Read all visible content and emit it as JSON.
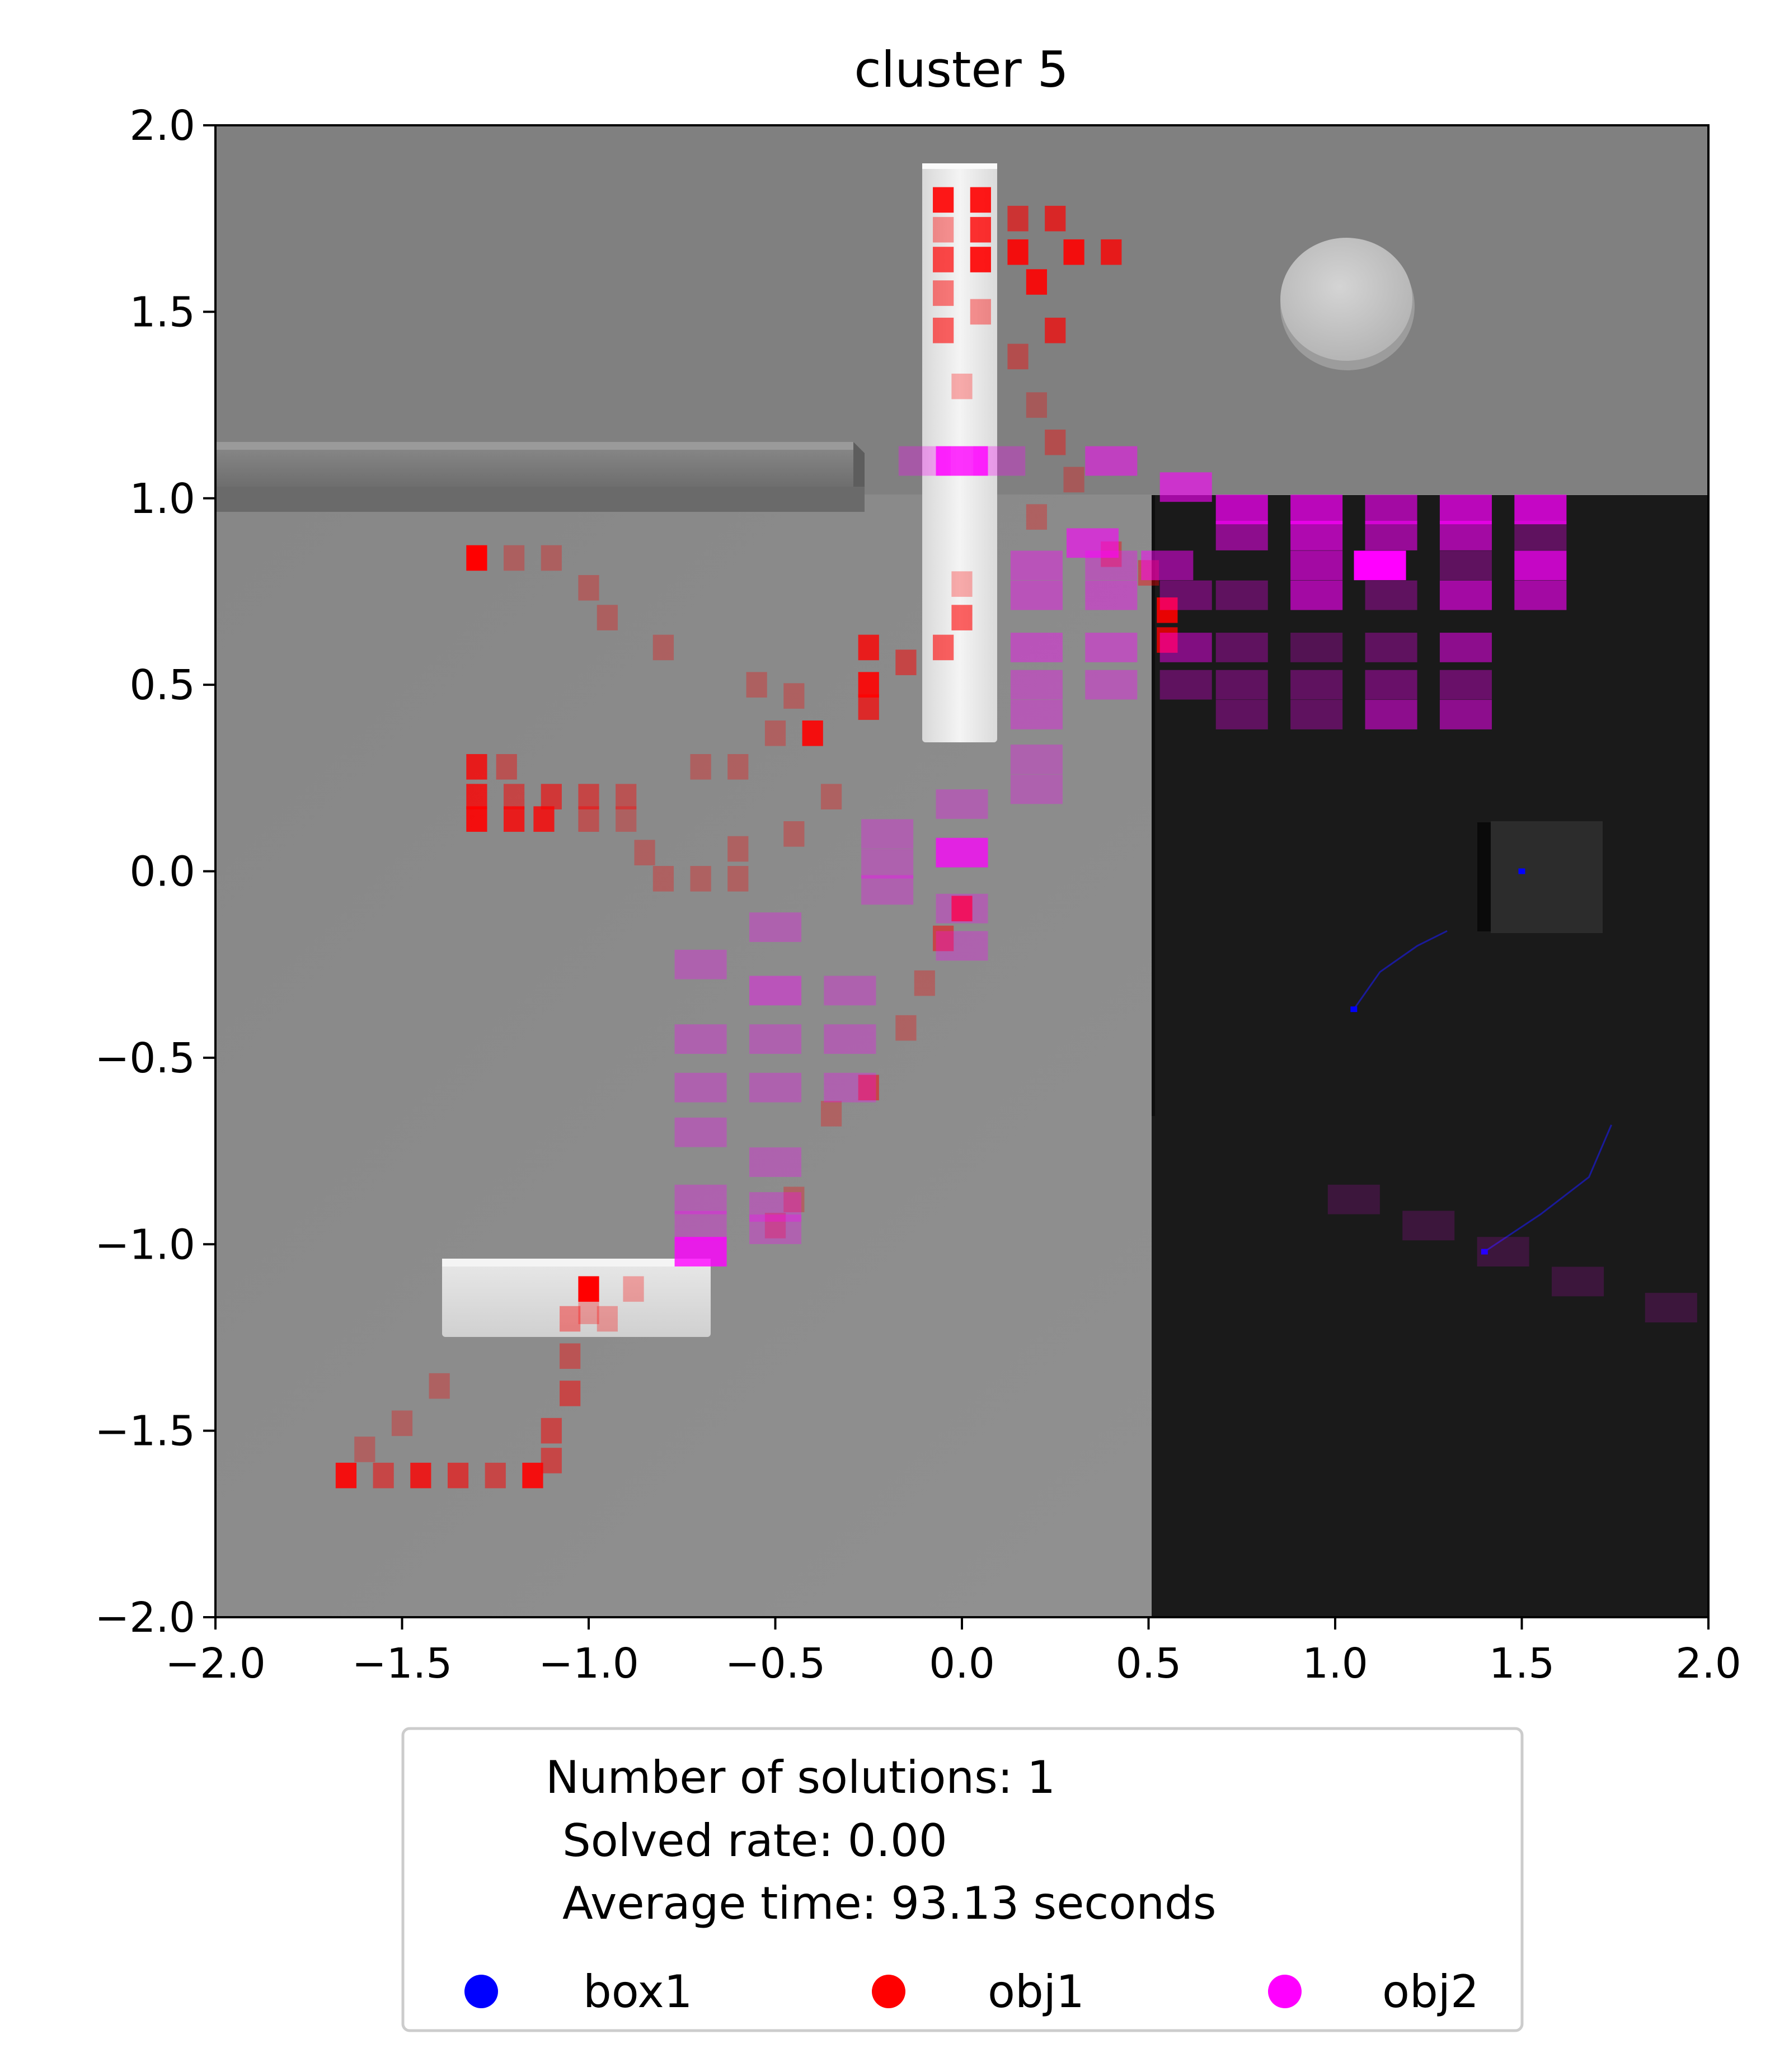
{
  "chart_data": {
    "type": "heatmap",
    "title": "cluster 5",
    "xlabel": "",
    "ylabel": "",
    "xlim": [
      -2.0,
      2.0
    ],
    "ylim": [
      -2.0,
      2.0
    ],
    "x_ticks": [
      "−2.0",
      "−1.5",
      "−1.0",
      "−0.5",
      "0.0",
      "0.5",
      "1.0",
      "1.5",
      "2.0"
    ],
    "y_ticks": [
      "2.0",
      "1.5",
      "1.0",
      "0.5",
      "0.0",
      "−0.5",
      "−1.0",
      "−1.5",
      "−2.0"
    ],
    "grid": false,
    "legend_position": "below",
    "legend_text": {
      "solutions": "Number of solutions: 1",
      "solved_rate": "Solved rate: 0.00",
      "average_time": "Average time: 93.13 seconds"
    },
    "series": [
      {
        "name": "box1",
        "color": "#0000ff",
        "cells": [
          [
            1.5,
            0.0
          ],
          [
            1.05,
            -0.37
          ],
          [
            1.4,
            -1.02
          ]
        ],
        "trails": [
          [
            [
              1.05,
              -0.37
            ],
            [
              1.12,
              -0.27
            ],
            [
              1.22,
              -0.2
            ],
            [
              1.3,
              -0.16
            ]
          ],
          [
            [
              1.4,
              -1.02
            ],
            [
              1.55,
              -0.92
            ],
            [
              1.68,
              -0.82
            ],
            [
              1.74,
              -0.68
            ]
          ]
        ]
      },
      {
        "name": "obj1",
        "color": "#ff0000",
        "cells": [
          [
            -0.05,
            1.8,
            0.9
          ],
          [
            0.05,
            1.8,
            0.9
          ],
          [
            -0.05,
            1.72,
            0.4
          ],
          [
            0.05,
            1.72,
            0.8
          ],
          [
            -0.05,
            1.64,
            0.7
          ],
          [
            0.05,
            1.64,
            0.9
          ],
          [
            0.15,
            1.75,
            0.6
          ],
          [
            0.25,
            1.75,
            0.7
          ],
          [
            0.15,
            1.66,
            0.9
          ],
          [
            0.3,
            1.66,
            0.9
          ],
          [
            0.4,
            1.66,
            0.8
          ],
          [
            0.2,
            1.58,
            0.9
          ],
          [
            -0.05,
            1.55,
            0.5
          ],
          [
            0.05,
            1.5,
            0.4
          ],
          [
            0.25,
            1.45,
            0.7
          ],
          [
            -0.05,
            1.45,
            0.6
          ],
          [
            0.15,
            1.38,
            0.4
          ],
          [
            0.0,
            1.3,
            0.3
          ],
          [
            0.2,
            1.25,
            0.3
          ],
          [
            0.25,
            1.15,
            0.4
          ],
          [
            0.3,
            1.05,
            0.3
          ],
          [
            0.2,
            0.95,
            0.3
          ],
          [
            0.4,
            0.85,
            0.4
          ],
          [
            0.5,
            0.8,
            0.4
          ],
          [
            0.55,
            0.7,
            0.9
          ],
          [
            0.55,
            0.62,
            0.8
          ],
          [
            0.0,
            0.77,
            0.3
          ],
          [
            0.0,
            0.68,
            0.6
          ],
          [
            -0.05,
            0.6,
            0.6
          ],
          [
            -0.25,
            0.6,
            0.8
          ],
          [
            -0.15,
            0.56,
            0.5
          ],
          [
            -0.25,
            0.5,
            0.9
          ],
          [
            -0.25,
            0.44,
            0.7
          ],
          [
            -0.4,
            0.37,
            0.9
          ],
          [
            -0.55,
            0.5,
            0.3
          ],
          [
            -0.45,
            0.47,
            0.3
          ],
          [
            -0.5,
            0.37,
            0.3
          ],
          [
            -1.3,
            0.84,
            1.0
          ],
          [
            -1.2,
            0.84,
            0.3
          ],
          [
            -1.1,
            0.84,
            0.3
          ],
          [
            -1.0,
            0.76,
            0.3
          ],
          [
            -0.95,
            0.68,
            0.3
          ],
          [
            -0.8,
            0.6,
            0.3
          ],
          [
            -1.3,
            0.28,
            0.8
          ],
          [
            -1.22,
            0.28,
            0.4
          ],
          [
            -1.3,
            0.2,
            0.8
          ],
          [
            -1.2,
            0.2,
            0.5
          ],
          [
            -1.1,
            0.2,
            0.6
          ],
          [
            -1.0,
            0.2,
            0.5
          ],
          [
            -0.9,
            0.2,
            0.4
          ],
          [
            -1.3,
            0.14,
            0.9
          ],
          [
            -1.2,
            0.14,
            0.8
          ],
          [
            -1.12,
            0.14,
            0.8
          ],
          [
            -1.0,
            0.14,
            0.4
          ],
          [
            -0.9,
            0.14,
            0.3
          ],
          [
            -0.85,
            0.05,
            0.3
          ],
          [
            -0.8,
            -0.02,
            0.3
          ],
          [
            -0.7,
            -0.02,
            0.3
          ],
          [
            -0.6,
            -0.02,
            0.3
          ],
          [
            -0.7,
            0.28,
            0.3
          ],
          [
            -0.6,
            0.28,
            0.3
          ],
          [
            -0.35,
            0.2,
            0.3
          ],
          [
            -0.45,
            0.1,
            0.3
          ],
          [
            -0.6,
            0.06,
            0.3
          ],
          [
            0.0,
            -0.1,
            0.8
          ],
          [
            -0.05,
            -0.18,
            0.5
          ],
          [
            -0.1,
            -0.3,
            0.3
          ],
          [
            -0.15,
            -0.42,
            0.3
          ],
          [
            -0.35,
            -0.65,
            0.3
          ],
          [
            -0.25,
            -0.58,
            0.5
          ],
          [
            -0.45,
            -0.88,
            0.3
          ],
          [
            -0.5,
            -0.95,
            0.3
          ],
          [
            -1.0,
            -1.12,
            1.0
          ],
          [
            -0.88,
            -1.12,
            0.3
          ],
          [
            -1.0,
            -1.18,
            0.3
          ],
          [
            -1.05,
            -1.2,
            0.4
          ],
          [
            -0.95,
            -1.2,
            0.3
          ],
          [
            -1.05,
            -1.3,
            0.4
          ],
          [
            -1.05,
            -1.4,
            0.5
          ],
          [
            -1.1,
            -1.5,
            0.5
          ],
          [
            -1.1,
            -1.58,
            0.5
          ],
          [
            -1.4,
            -1.38,
            0.3
          ],
          [
            -1.5,
            -1.48,
            0.3
          ],
          [
            -1.6,
            -1.55,
            0.3
          ],
          [
            -1.65,
            -1.62,
            0.9
          ],
          [
            -1.55,
            -1.62,
            0.5
          ],
          [
            -1.45,
            -1.62,
            0.8
          ],
          [
            -1.35,
            -1.62,
            0.6
          ],
          [
            -1.25,
            -1.62,
            0.5
          ],
          [
            -1.15,
            -1.62,
            0.9
          ]
        ]
      },
      {
        "name": "obj2",
        "color": "#ff00ff",
        "cells": [
          [
            -0.1,
            1.1,
            0.3
          ],
          [
            0.0,
            1.1,
            0.8
          ],
          [
            0.1,
            1.1,
            0.3
          ],
          [
            0.4,
            1.1,
            0.5
          ],
          [
            0.6,
            1.03,
            0.6
          ],
          [
            0.75,
            0.97,
            0.7
          ],
          [
            0.95,
            0.97,
            0.7
          ],
          [
            1.15,
            0.97,
            0.6
          ],
          [
            1.35,
            0.97,
            0.7
          ],
          [
            1.55,
            0.97,
            0.75
          ],
          [
            0.75,
            0.9,
            0.5
          ],
          [
            0.95,
            0.9,
            0.65
          ],
          [
            1.15,
            0.9,
            0.55
          ],
          [
            1.35,
            0.9,
            0.6
          ],
          [
            1.55,
            0.9,
            0.3
          ],
          [
            0.35,
            0.88,
            0.6
          ],
          [
            0.55,
            0.82,
            0.5
          ],
          [
            0.2,
            0.82,
            0.4
          ],
          [
            0.4,
            0.82,
            0.35
          ],
          [
            0.95,
            0.82,
            0.6
          ],
          [
            1.12,
            0.82,
            1.0
          ],
          [
            1.35,
            0.82,
            0.3
          ],
          [
            1.55,
            0.82,
            0.75
          ],
          [
            0.75,
            0.74,
            0.3
          ],
          [
            0.95,
            0.74,
            0.6
          ],
          [
            1.15,
            0.74,
            0.3
          ],
          [
            1.35,
            0.74,
            0.6
          ],
          [
            1.55,
            0.74,
            0.6
          ],
          [
            0.2,
            0.74,
            0.4
          ],
          [
            0.4,
            0.74,
            0.4
          ],
          [
            0.6,
            0.74,
            0.35
          ],
          [
            0.2,
            0.6,
            0.4
          ],
          [
            0.4,
            0.6,
            0.4
          ],
          [
            0.6,
            0.6,
            0.45
          ],
          [
            0.75,
            0.6,
            0.3
          ],
          [
            0.95,
            0.6,
            0.25
          ],
          [
            1.15,
            0.6,
            0.3
          ],
          [
            1.35,
            0.6,
            0.5
          ],
          [
            0.2,
            0.5,
            0.35
          ],
          [
            0.4,
            0.5,
            0.35
          ],
          [
            0.6,
            0.5,
            0.3
          ],
          [
            0.75,
            0.5,
            0.3
          ],
          [
            0.95,
            0.5,
            0.3
          ],
          [
            1.15,
            0.5,
            0.35
          ],
          [
            1.35,
            0.5,
            0.35
          ],
          [
            0.2,
            0.42,
            0.35
          ],
          [
            0.75,
            0.42,
            0.3
          ],
          [
            0.95,
            0.42,
            0.3
          ],
          [
            1.15,
            0.42,
            0.5
          ],
          [
            1.35,
            0.42,
            0.5
          ],
          [
            0.2,
            0.3,
            0.3
          ],
          [
            0.2,
            0.22,
            0.3
          ],
          [
            0.0,
            0.18,
            0.3
          ],
          [
            -0.2,
            0.1,
            0.3
          ],
          [
            0.0,
            0.05,
            0.75
          ],
          [
            -0.2,
            0.02,
            0.3
          ],
          [
            -0.2,
            -0.05,
            0.3
          ],
          [
            0.0,
            -0.1,
            0.3
          ],
          [
            -0.5,
            -0.15,
            0.3
          ],
          [
            0.0,
            -0.2,
            0.3
          ],
          [
            -0.7,
            -0.25,
            0.3
          ],
          [
            -0.5,
            -0.32,
            0.4
          ],
          [
            -0.3,
            -0.32,
            0.3
          ],
          [
            -0.7,
            -0.45,
            0.3
          ],
          [
            -0.5,
            -0.45,
            0.3
          ],
          [
            -0.3,
            -0.45,
            0.3
          ],
          [
            -0.7,
            -0.58,
            0.3
          ],
          [
            -0.5,
            -0.58,
            0.3
          ],
          [
            -0.3,
            -0.58,
            0.3
          ],
          [
            -0.7,
            -0.7,
            0.3
          ],
          [
            -0.5,
            -0.78,
            0.3
          ],
          [
            -0.5,
            -0.9,
            0.3
          ],
          [
            -0.7,
            -0.95,
            0.3
          ],
          [
            -0.7,
            -0.88,
            0.3
          ],
          [
            -0.5,
            -0.96,
            0.3
          ],
          [
            -0.7,
            -1.02,
            0.8
          ],
          [
            1.05,
            -0.88,
            0.15
          ],
          [
            1.25,
            -0.95,
            0.15
          ],
          [
            1.45,
            -1.02,
            0.15
          ],
          [
            1.65,
            -1.1,
            0.15
          ],
          [
            1.9,
            -1.17,
            0.15
          ]
        ]
      }
    ]
  }
}
